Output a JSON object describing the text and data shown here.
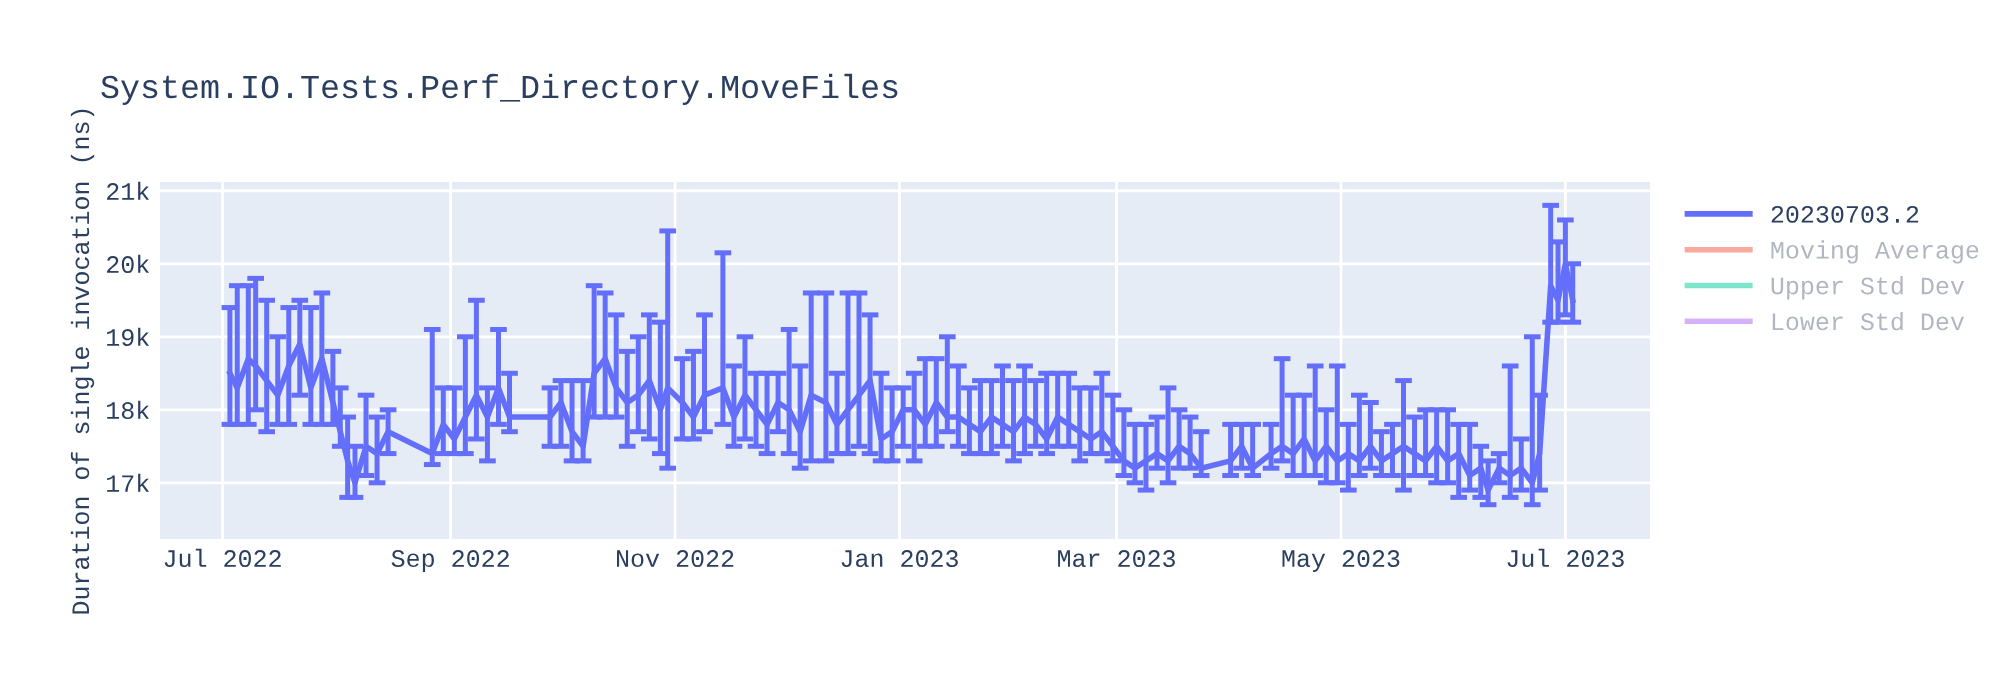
{
  "chart_data": {
    "type": "line",
    "title": "System.IO.Tests.Perf_Directory.MoveFiles",
    "ylabel": "Duration of single invocation (ns)",
    "xlim": [
      "2022-06-14",
      "2023-07-24"
    ],
    "xticks": [
      {
        "value": "2022-07-01",
        "label": "Jul 2022"
      },
      {
        "value": "2022-09-01",
        "label": "Sep 2022"
      },
      {
        "value": "2022-11-01",
        "label": "Nov 2022"
      },
      {
        "value": "2023-01-01",
        "label": "Jan 2023"
      },
      {
        "value": "2023-03-01",
        "label": "Mar 2023"
      },
      {
        "value": "2023-05-01",
        "label": "May 2023"
      },
      {
        "value": "2023-07-01",
        "label": "Jul 2023"
      }
    ],
    "ylim": [
      16230,
      21120
    ],
    "yticks": [
      {
        "value": 17000,
        "label": "17k"
      },
      {
        "value": 18000,
        "label": "18k"
      },
      {
        "value": 19000,
        "label": "19k"
      },
      {
        "value": 20000,
        "label": "20k"
      },
      {
        "value": 21000,
        "label": "21k"
      }
    ],
    "grid": true,
    "legend": "top right",
    "marker": "none",
    "line_style": "solid",
    "series": [
      {
        "name": "20230703.2",
        "color": "#636efa",
        "x": [
          "2022-07-03",
          "2022-07-05",
          "2022-07-08",
          "2022-07-10",
          "2022-07-13",
          "2022-07-16",
          "2022-07-19",
          "2022-07-22",
          "2022-07-25",
          "2022-07-28",
          "2022-07-31",
          "2022-08-02",
          "2022-08-04",
          "2022-08-06",
          "2022-08-09",
          "2022-08-12",
          "2022-08-15",
          "2022-08-27",
          "2022-08-30",
          "2022-09-02",
          "2022-09-05",
          "2022-09-08",
          "2022-09-11",
          "2022-09-14",
          "2022-09-17",
          "2022-09-28",
          "2022-10-01",
          "2022-10-04",
          "2022-10-07",
          "2022-10-10",
          "2022-10-13",
          "2022-10-16",
          "2022-10-19",
          "2022-10-22",
          "2022-10-25",
          "2022-10-28",
          "2022-10-30",
          "2022-11-03",
          "2022-11-06",
          "2022-11-09",
          "2022-11-14",
          "2022-11-17",
          "2022-11-20",
          "2022-11-23",
          "2022-11-26",
          "2022-11-29",
          "2022-12-02",
          "2022-12-05",
          "2022-12-08",
          "2022-12-12",
          "2022-12-15",
          "2022-12-18",
          "2022-12-21",
          "2022-12-24",
          "2022-12-27",
          "2022-12-30",
          "2023-01-02",
          "2023-01-05",
          "2023-01-08",
          "2023-01-11",
          "2023-01-14",
          "2023-01-17",
          "2023-01-20",
          "2023-01-23",
          "2023-01-26",
          "2023-01-29",
          "2023-02-01",
          "2023-02-04",
          "2023-02-07",
          "2023-02-10",
          "2023-02-13",
          "2023-02-16",
          "2023-02-19",
          "2023-02-22",
          "2023-02-25",
          "2023-02-28",
          "2023-03-03",
          "2023-03-06",
          "2023-03-09",
          "2023-03-12",
          "2023-03-15",
          "2023-03-18",
          "2023-03-21",
          "2023-03-24",
          "2023-04-01",
          "2023-04-04",
          "2023-04-07",
          "2023-04-12",
          "2023-04-15",
          "2023-04-18",
          "2023-04-21",
          "2023-04-24",
          "2023-04-27",
          "2023-04-30",
          "2023-05-03",
          "2023-05-06",
          "2023-05-09",
          "2023-05-12",
          "2023-05-15",
          "2023-05-18",
          "2023-05-21",
          "2023-05-24",
          "2023-05-27",
          "2023-05-30",
          "2023-06-02",
          "2023-06-05",
          "2023-06-08",
          "2023-06-10",
          "2023-06-13",
          "2023-06-16",
          "2023-06-19",
          "2023-06-22",
          "2023-06-24",
          "2023-06-27",
          "2023-06-29",
          "2023-07-01",
          "2023-07-03"
        ],
        "values": [
          18500,
          18300,
          18700,
          18600,
          18400,
          18200,
          18600,
          18900,
          18300,
          18700,
          18100,
          17700,
          17300,
          17000,
          17500,
          17400,
          17700,
          17400,
          17800,
          17600,
          17900,
          18200,
          17900,
          18300,
          17900,
          17900,
          18100,
          17700,
          17500,
          18500,
          18700,
          18300,
          18100,
          18200,
          18400,
          18000,
          18300,
          18100,
          17900,
          18200,
          18300,
          17900,
          18200,
          18000,
          17800,
          18100,
          18000,
          17700,
          18200,
          18100,
          17800,
          18000,
          18200,
          18400,
          17600,
          17700,
          18000,
          18000,
          17800,
          18100,
          17900,
          17900,
          17800,
          17700,
          17900,
          17800,
          17700,
          17900,
          17800,
          17600,
          17900,
          17800,
          17700,
          17600,
          17700,
          17500,
          17300,
          17200,
          17300,
          17400,
          17300,
          17500,
          17400,
          17200,
          17300,
          17500,
          17200,
          17400,
          17500,
          17400,
          17600,
          17300,
          17500,
          17300,
          17400,
          17300,
          17500,
          17300,
          17400,
          17500,
          17400,
          17300,
          17500,
          17300,
          17400,
          17100,
          17200,
          16900,
          17200,
          17100,
          17200,
          17000,
          17400,
          19700,
          19500,
          20000,
          19500
        ],
        "errors": [
          [
            17800,
            19400
          ],
          [
            17800,
            19700
          ],
          [
            17800,
            19700
          ],
          [
            18000,
            19800
          ],
          [
            17700,
            19500
          ],
          [
            17800,
            19000
          ],
          [
            17800,
            19400
          ],
          [
            18200,
            19500
          ],
          [
            17800,
            19400
          ],
          [
            17800,
            19600
          ],
          [
            17800,
            18800
          ],
          [
            17500,
            18300
          ],
          [
            16800,
            17900
          ],
          [
            16800,
            17500
          ],
          [
            17100,
            18200
          ],
          [
            17000,
            17900
          ],
          [
            17400,
            18000
          ],
          [
            17250,
            19100
          ],
          [
            17400,
            18300
          ],
          [
            17400,
            18300
          ],
          [
            17400,
            19000
          ],
          [
            17600,
            19500
          ],
          [
            17300,
            18300
          ],
          [
            17800,
            19100
          ],
          [
            17700,
            18500
          ],
          [
            17500,
            18300
          ],
          [
            17500,
            18400
          ],
          [
            17300,
            18400
          ],
          [
            17300,
            18400
          ],
          [
            17900,
            19700
          ],
          [
            17900,
            19600
          ],
          [
            17900,
            19300
          ],
          [
            17500,
            18800
          ],
          [
            17700,
            19000
          ],
          [
            17600,
            19300
          ],
          [
            17400,
            19200
          ],
          [
            17200,
            20450
          ],
          [
            17600,
            18700
          ],
          [
            17600,
            18800
          ],
          [
            17700,
            19300
          ],
          [
            17800,
            20150
          ],
          [
            17500,
            18600
          ],
          [
            17600,
            19000
          ],
          [
            17500,
            18500
          ],
          [
            17400,
            18500
          ],
          [
            17700,
            18500
          ],
          [
            17400,
            19100
          ],
          [
            17200,
            18600
          ],
          [
            17300,
            19600
          ],
          [
            17300,
            19600
          ],
          [
            17400,
            18500
          ],
          [
            17400,
            19600
          ],
          [
            17500,
            19600
          ],
          [
            17400,
            19300
          ],
          [
            17300,
            18500
          ],
          [
            17300,
            18300
          ],
          [
            17500,
            18300
          ],
          [
            17300,
            18500
          ],
          [
            17500,
            18700
          ],
          [
            17500,
            18700
          ],
          [
            17700,
            19000
          ],
          [
            17500,
            18600
          ],
          [
            17400,
            18300
          ],
          [
            17400,
            18400
          ],
          [
            17400,
            18400
          ],
          [
            17500,
            18600
          ],
          [
            17300,
            18400
          ],
          [
            17400,
            18600
          ],
          [
            17500,
            18400
          ],
          [
            17400,
            18500
          ],
          [
            17500,
            18500
          ],
          [
            17500,
            18500
          ],
          [
            17300,
            18300
          ],
          [
            17400,
            18300
          ],
          [
            17400,
            18500
          ],
          [
            17300,
            18200
          ],
          [
            17100,
            18000
          ],
          [
            17000,
            17800
          ],
          [
            16900,
            17800
          ],
          [
            17200,
            17900
          ],
          [
            17000,
            18300
          ],
          [
            17200,
            18000
          ],
          [
            17200,
            17900
          ],
          [
            17100,
            17700
          ],
          [
            17100,
            17800
          ],
          [
            17200,
            17800
          ],
          [
            17100,
            17800
          ],
          [
            17200,
            17800
          ],
          [
            17300,
            18700
          ],
          [
            17100,
            18200
          ],
          [
            17100,
            18200
          ],
          [
            17100,
            18600
          ],
          [
            17000,
            18000
          ],
          [
            17000,
            18600
          ],
          [
            16900,
            17800
          ],
          [
            17100,
            18200
          ],
          [
            17200,
            18100
          ],
          [
            17100,
            17700
          ],
          [
            17100,
            17800
          ],
          [
            16900,
            18400
          ],
          [
            17100,
            17900
          ],
          [
            17100,
            18000
          ],
          [
            17000,
            18000
          ],
          [
            17000,
            18000
          ],
          [
            16800,
            17800
          ],
          [
            16900,
            17800
          ],
          [
            16800,
            17500
          ],
          [
            16700,
            17300
          ],
          [
            17000,
            17400
          ],
          [
            16800,
            18600
          ],
          [
            16900,
            17600
          ],
          [
            16700,
            19000
          ],
          [
            16900,
            18200
          ],
          [
            19200,
            20800
          ],
          [
            19200,
            20300
          ],
          [
            19300,
            20600
          ],
          [
            19200,
            20000
          ]
        ]
      },
      {
        "name": "Moving Average",
        "color": "#ef553b"
      },
      {
        "name": "Upper Std Dev",
        "color": "#00cc96"
      },
      {
        "name": "Lower Std Dev",
        "color": "#ab63fa"
      }
    ]
  }
}
